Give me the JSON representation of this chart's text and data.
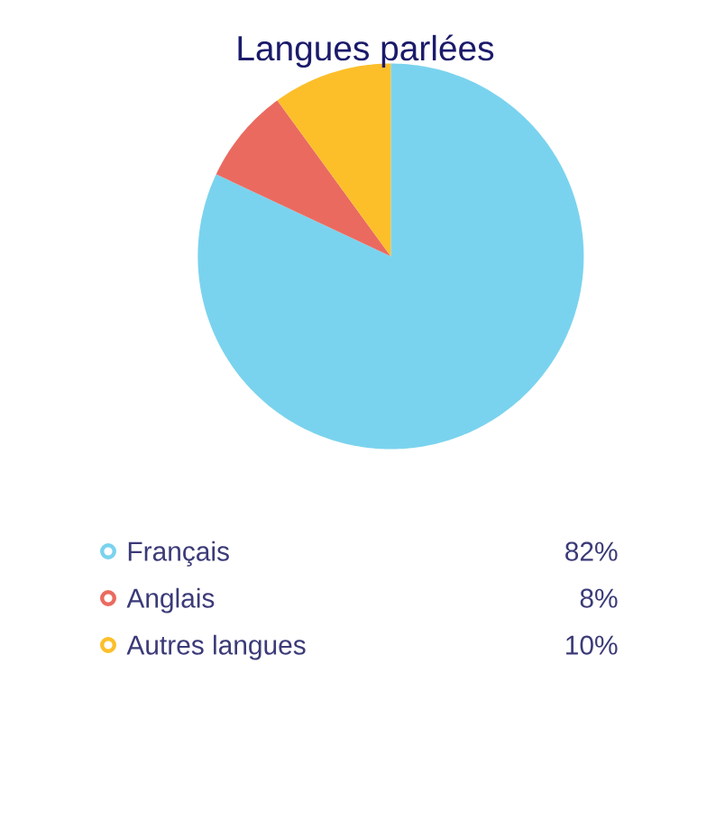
{
  "chart_data": {
    "type": "pie",
    "title": "Langues parlées",
    "categories": [
      "Français",
      "Anglais",
      "Autres langues"
    ],
    "values": [
      82,
      8,
      10
    ],
    "colors": [
      "#7ad3ee",
      "#ea6a60",
      "#fcbf2a"
    ],
    "value_labels": [
      "82%",
      "8%",
      "10%"
    ],
    "legend": "bottom"
  }
}
